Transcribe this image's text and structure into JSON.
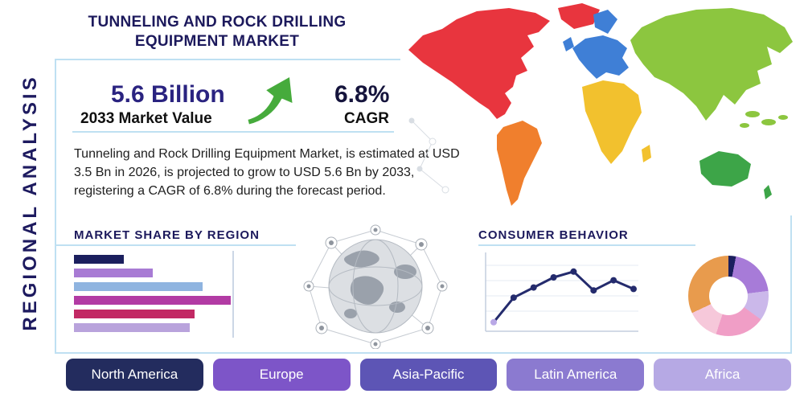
{
  "page": {
    "title": "TUNNELING AND ROCK DRILLING EQUIPMENT MARKET",
    "side_label": "REGIONAL ANALYSIS"
  },
  "stats": {
    "market_value": "5.6 Billion",
    "market_value_label": "2033 Market Value",
    "cagr_value": "6.8%",
    "cagr_label": "CAGR",
    "description": "Tunneling and Rock Drilling Equipment Market, is estimated at USD 3.5 Bn in 2026, is projected to grow to USD 5.6 Bn by 2033, registering a CAGR of 6.8% during the forecast period."
  },
  "sections": {
    "market_share_heading": "MARKET SHARE BY REGION",
    "consumer_behavior_heading": "CONSUMER BEHAVIOR"
  },
  "region_buttons": [
    {
      "label": "North America",
      "color": "#232c5e"
    },
    {
      "label": "Europe",
      "color": "#7d55c8"
    },
    {
      "label": "Asia-Pacific",
      "color": "#5d55b5"
    },
    {
      "label": "Latin America",
      "color": "#8b7ad0"
    },
    {
      "label": "Africa",
      "color": "#b6a9e4"
    }
  ],
  "map": {
    "continents": [
      {
        "name": "north-america",
        "color": "#e8353e"
      },
      {
        "name": "greenland",
        "color": "#e8353e"
      },
      {
        "name": "south-america",
        "color": "#f07f2d"
      },
      {
        "name": "europe",
        "color": "#3f7fd6"
      },
      {
        "name": "africa",
        "color": "#f2c12e"
      },
      {
        "name": "asia",
        "color": "#8cc63f"
      },
      {
        "name": "islands",
        "color": "#8cc63f"
      },
      {
        "name": "australia",
        "color": "#3da548"
      }
    ]
  },
  "accent": {
    "underline_color": "#bfe0f2",
    "arrow_color": "#46ab3c"
  },
  "chart_data": [
    {
      "id": "market_share_by_region",
      "type": "bar",
      "orientation": "horizontal",
      "title": "MARKET SHARE BY REGION",
      "categories": [
        "",
        "",
        "",
        "",
        "",
        ""
      ],
      "values": [
        32,
        50,
        82,
        100,
        77,
        74
      ],
      "xlim": [
        0,
        100
      ],
      "colors": [
        "#1b1f5e",
        "#a87bd4",
        "#8fb4e0",
        "#b23ba4",
        "#c22964",
        "#b9a3dc"
      ]
    },
    {
      "id": "consumer_behavior",
      "type": "line",
      "title": "CONSUMER BEHAVIOR",
      "x": [
        1,
        2,
        3,
        4,
        5,
        6,
        7,
        8
      ],
      "values": [
        0.8,
        4.2,
        5.6,
        7.0,
        7.8,
        5.2,
        6.6,
        5.4
      ],
      "ylim": [
        0,
        10
      ],
      "grid": true,
      "line_color": "#242b6d",
      "first_marker_color": "#b9a8e6"
    },
    {
      "id": "regional_share_donut",
      "type": "pie",
      "donut": true,
      "segments": [
        {
          "color": "#1b1f5e",
          "value": 3
        },
        {
          "color": "#a77bd8",
          "value": 20
        },
        {
          "color": "#cbb8ea",
          "value": 12
        },
        {
          "color": "#f09ec6",
          "value": 20
        },
        {
          "color": "#f6c8da",
          "value": 13
        },
        {
          "color": "#e89b4d",
          "value": 32
        }
      ]
    }
  ]
}
